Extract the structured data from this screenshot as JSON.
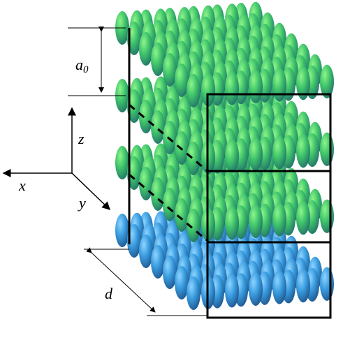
{
  "axes": {
    "x": "x",
    "y": "y",
    "z": "z"
  },
  "dimensions": {
    "layer_spacing": {
      "symbol": "a",
      "subscript": "0"
    },
    "depth": "d"
  }
}
